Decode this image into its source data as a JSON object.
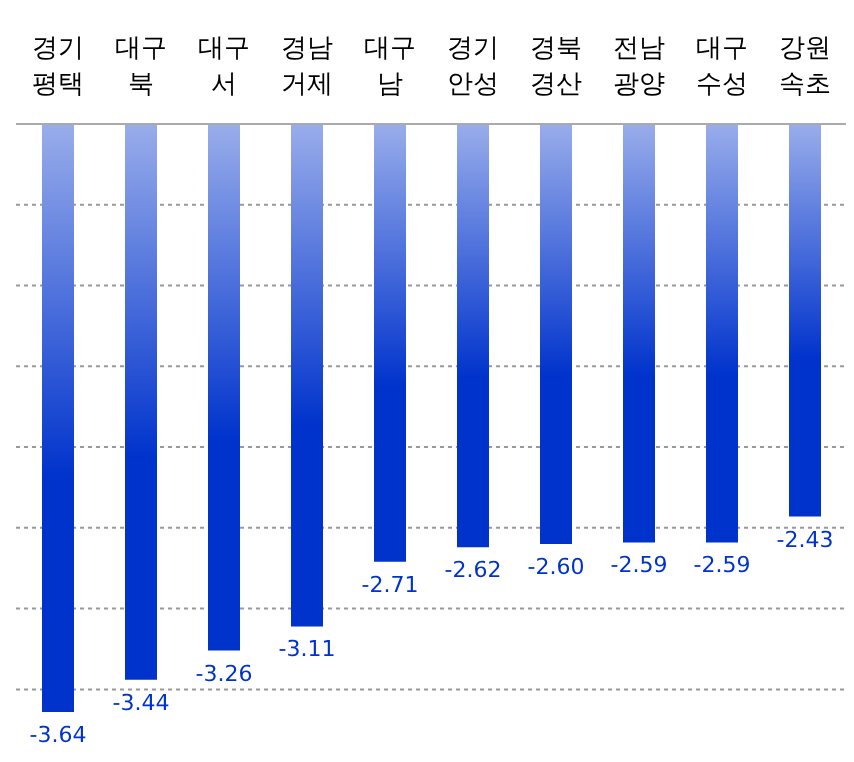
{
  "chart_data": {
    "type": "bar",
    "categories": [
      "경기 평택",
      "대구 북",
      "대구 서",
      "경남 거제",
      "대구 남",
      "경기 안성",
      "경북 경산",
      "전남 광양",
      "대구 수성",
      "강원 속초"
    ],
    "values": [
      -3.64,
      -3.44,
      -3.26,
      -3.11,
      -2.71,
      -2.62,
      -2.6,
      -2.59,
      -2.59,
      -2.43
    ],
    "value_labels": [
      "-3.64",
      "-3.44",
      "-3.26",
      "-3.11",
      "-2.71",
      "-2.62",
      "-2.60",
      "-2.59",
      "-2.59",
      "-2.43"
    ],
    "color": "#0033cc",
    "yticks": [
      {
        "value": 0,
        "label": null
      },
      {
        "value": -0.5,
        "label": null
      },
      {
        "value": -1,
        "label": null
      },
      {
        "value": -1.5,
        "label": null
      },
      {
        "value": -2,
        "label": null
      },
      {
        "value": -2.5,
        "label": null
      },
      {
        "value": -3,
        "label": null
      },
      {
        "value": -3.5,
        "label": null
      }
    ],
    "grid": "y",
    "tick_labels": "x",
    "legend": false
  }
}
